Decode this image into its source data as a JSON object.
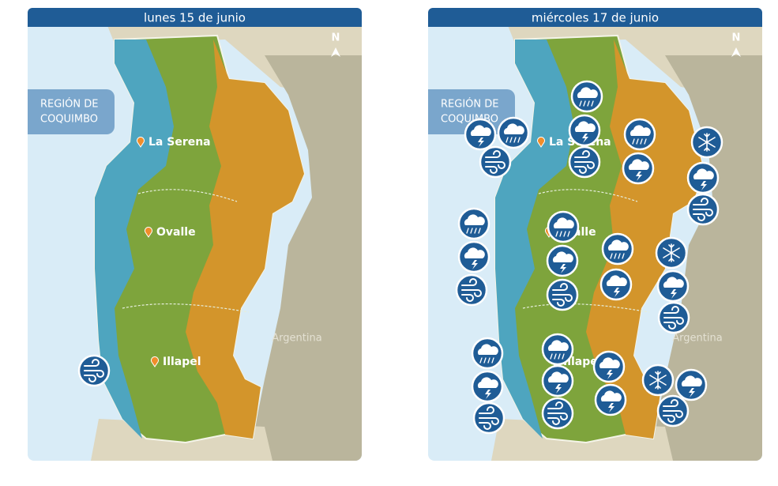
{
  "panels": [
    {
      "title": "lunes 15 de junio",
      "north": "N",
      "region_label": [
        "REGIÓN DE",
        "COQUIMBO"
      ],
      "cities": [
        "La Serena",
        "Ovalle",
        "Illapel"
      ],
      "country": "Argentina"
    },
    {
      "title": "miércoles 17 de junio",
      "north": "N",
      "region_label": [
        "REGIÓN DE",
        "COQUIMBO"
      ],
      "cities": [
        "La Serena",
        "Ovalle",
        "Illapel"
      ],
      "country": "Argentina"
    }
  ]
}
